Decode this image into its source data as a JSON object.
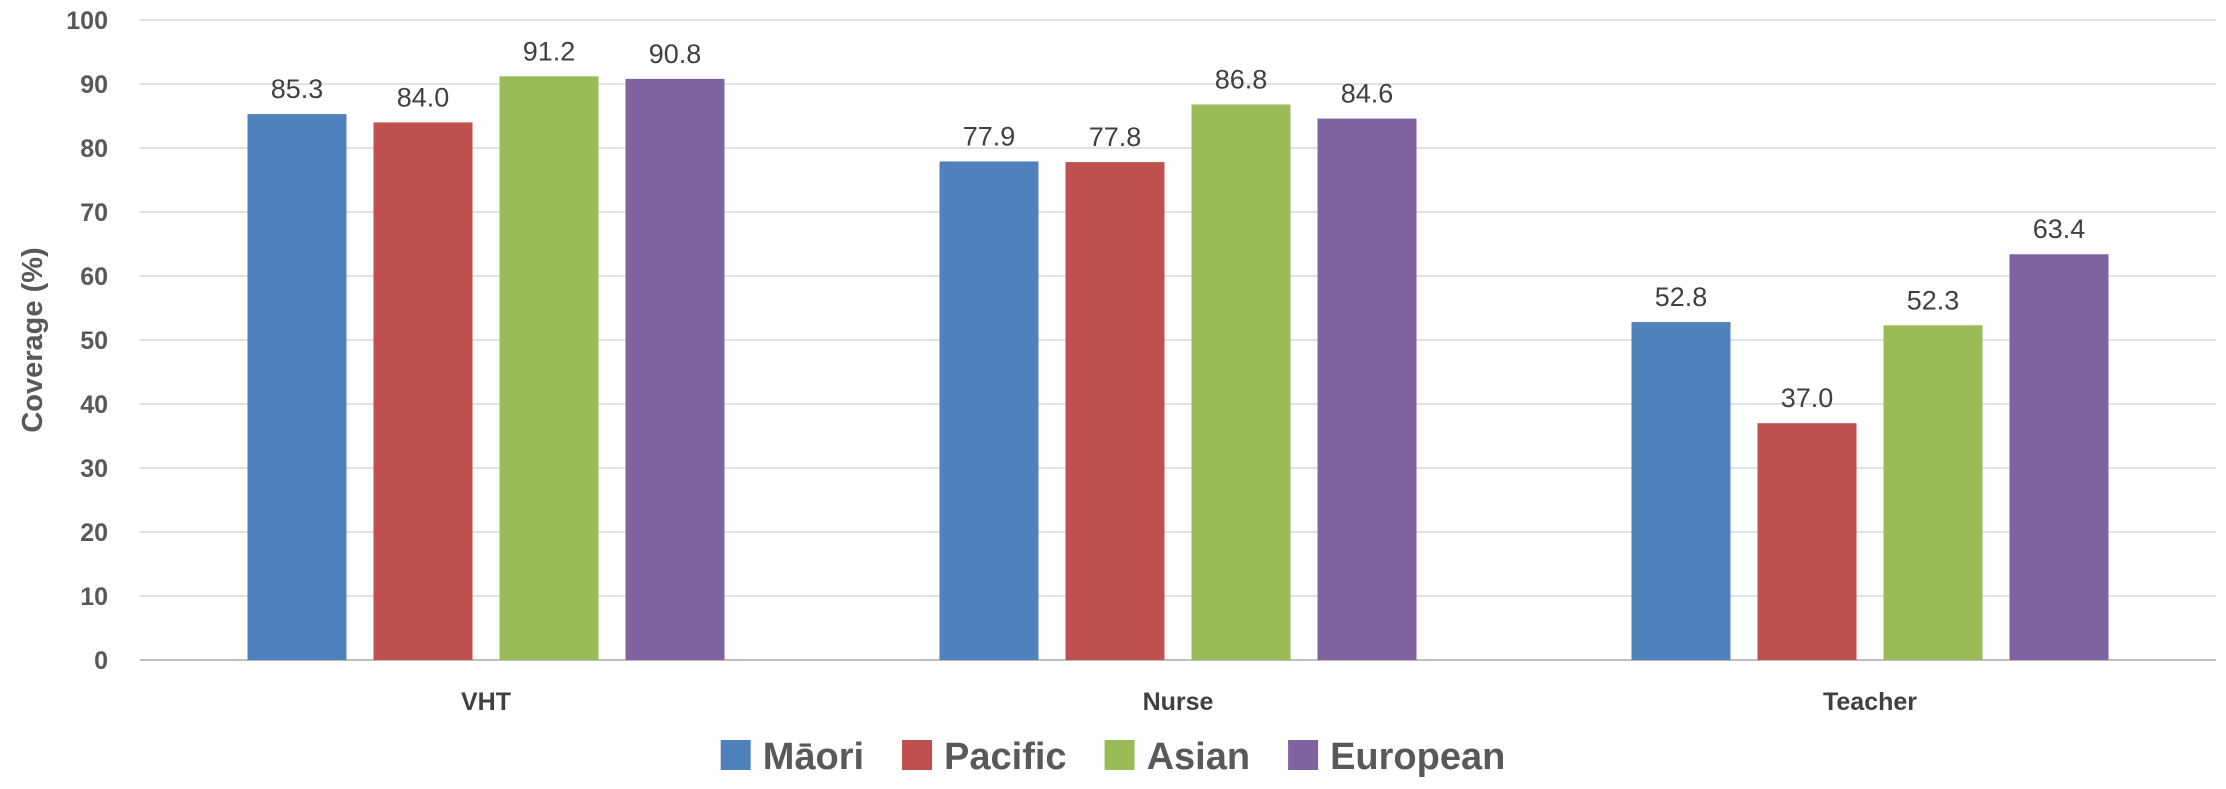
{
  "chart_data": {
    "type": "bar",
    "categories": [
      "VHT",
      "Nurse",
      "Teacher"
    ],
    "series": [
      {
        "name": "Māori",
        "color": "#4f81bd",
        "values": [
          85.3,
          77.9,
          52.8
        ]
      },
      {
        "name": "Pacific",
        "color": "#c0504d",
        "values": [
          84.0,
          77.8,
          37.0
        ]
      },
      {
        "name": "Asian",
        "color": "#9bbb59",
        "values": [
          91.2,
          86.8,
          52.3
        ]
      },
      {
        "name": "European",
        "color": "#8064a2",
        "values": [
          90.8,
          84.6,
          63.4
        ]
      }
    ],
    "title": "",
    "xlabel": "",
    "ylabel": "Coverage (%)",
    "ylim": [
      0,
      100
    ],
    "yticks": [
      0,
      10,
      20,
      30,
      40,
      50,
      60,
      70,
      80,
      90,
      100
    ],
    "grid": true,
    "legend": "bottom",
    "value_decimals": 1
  }
}
